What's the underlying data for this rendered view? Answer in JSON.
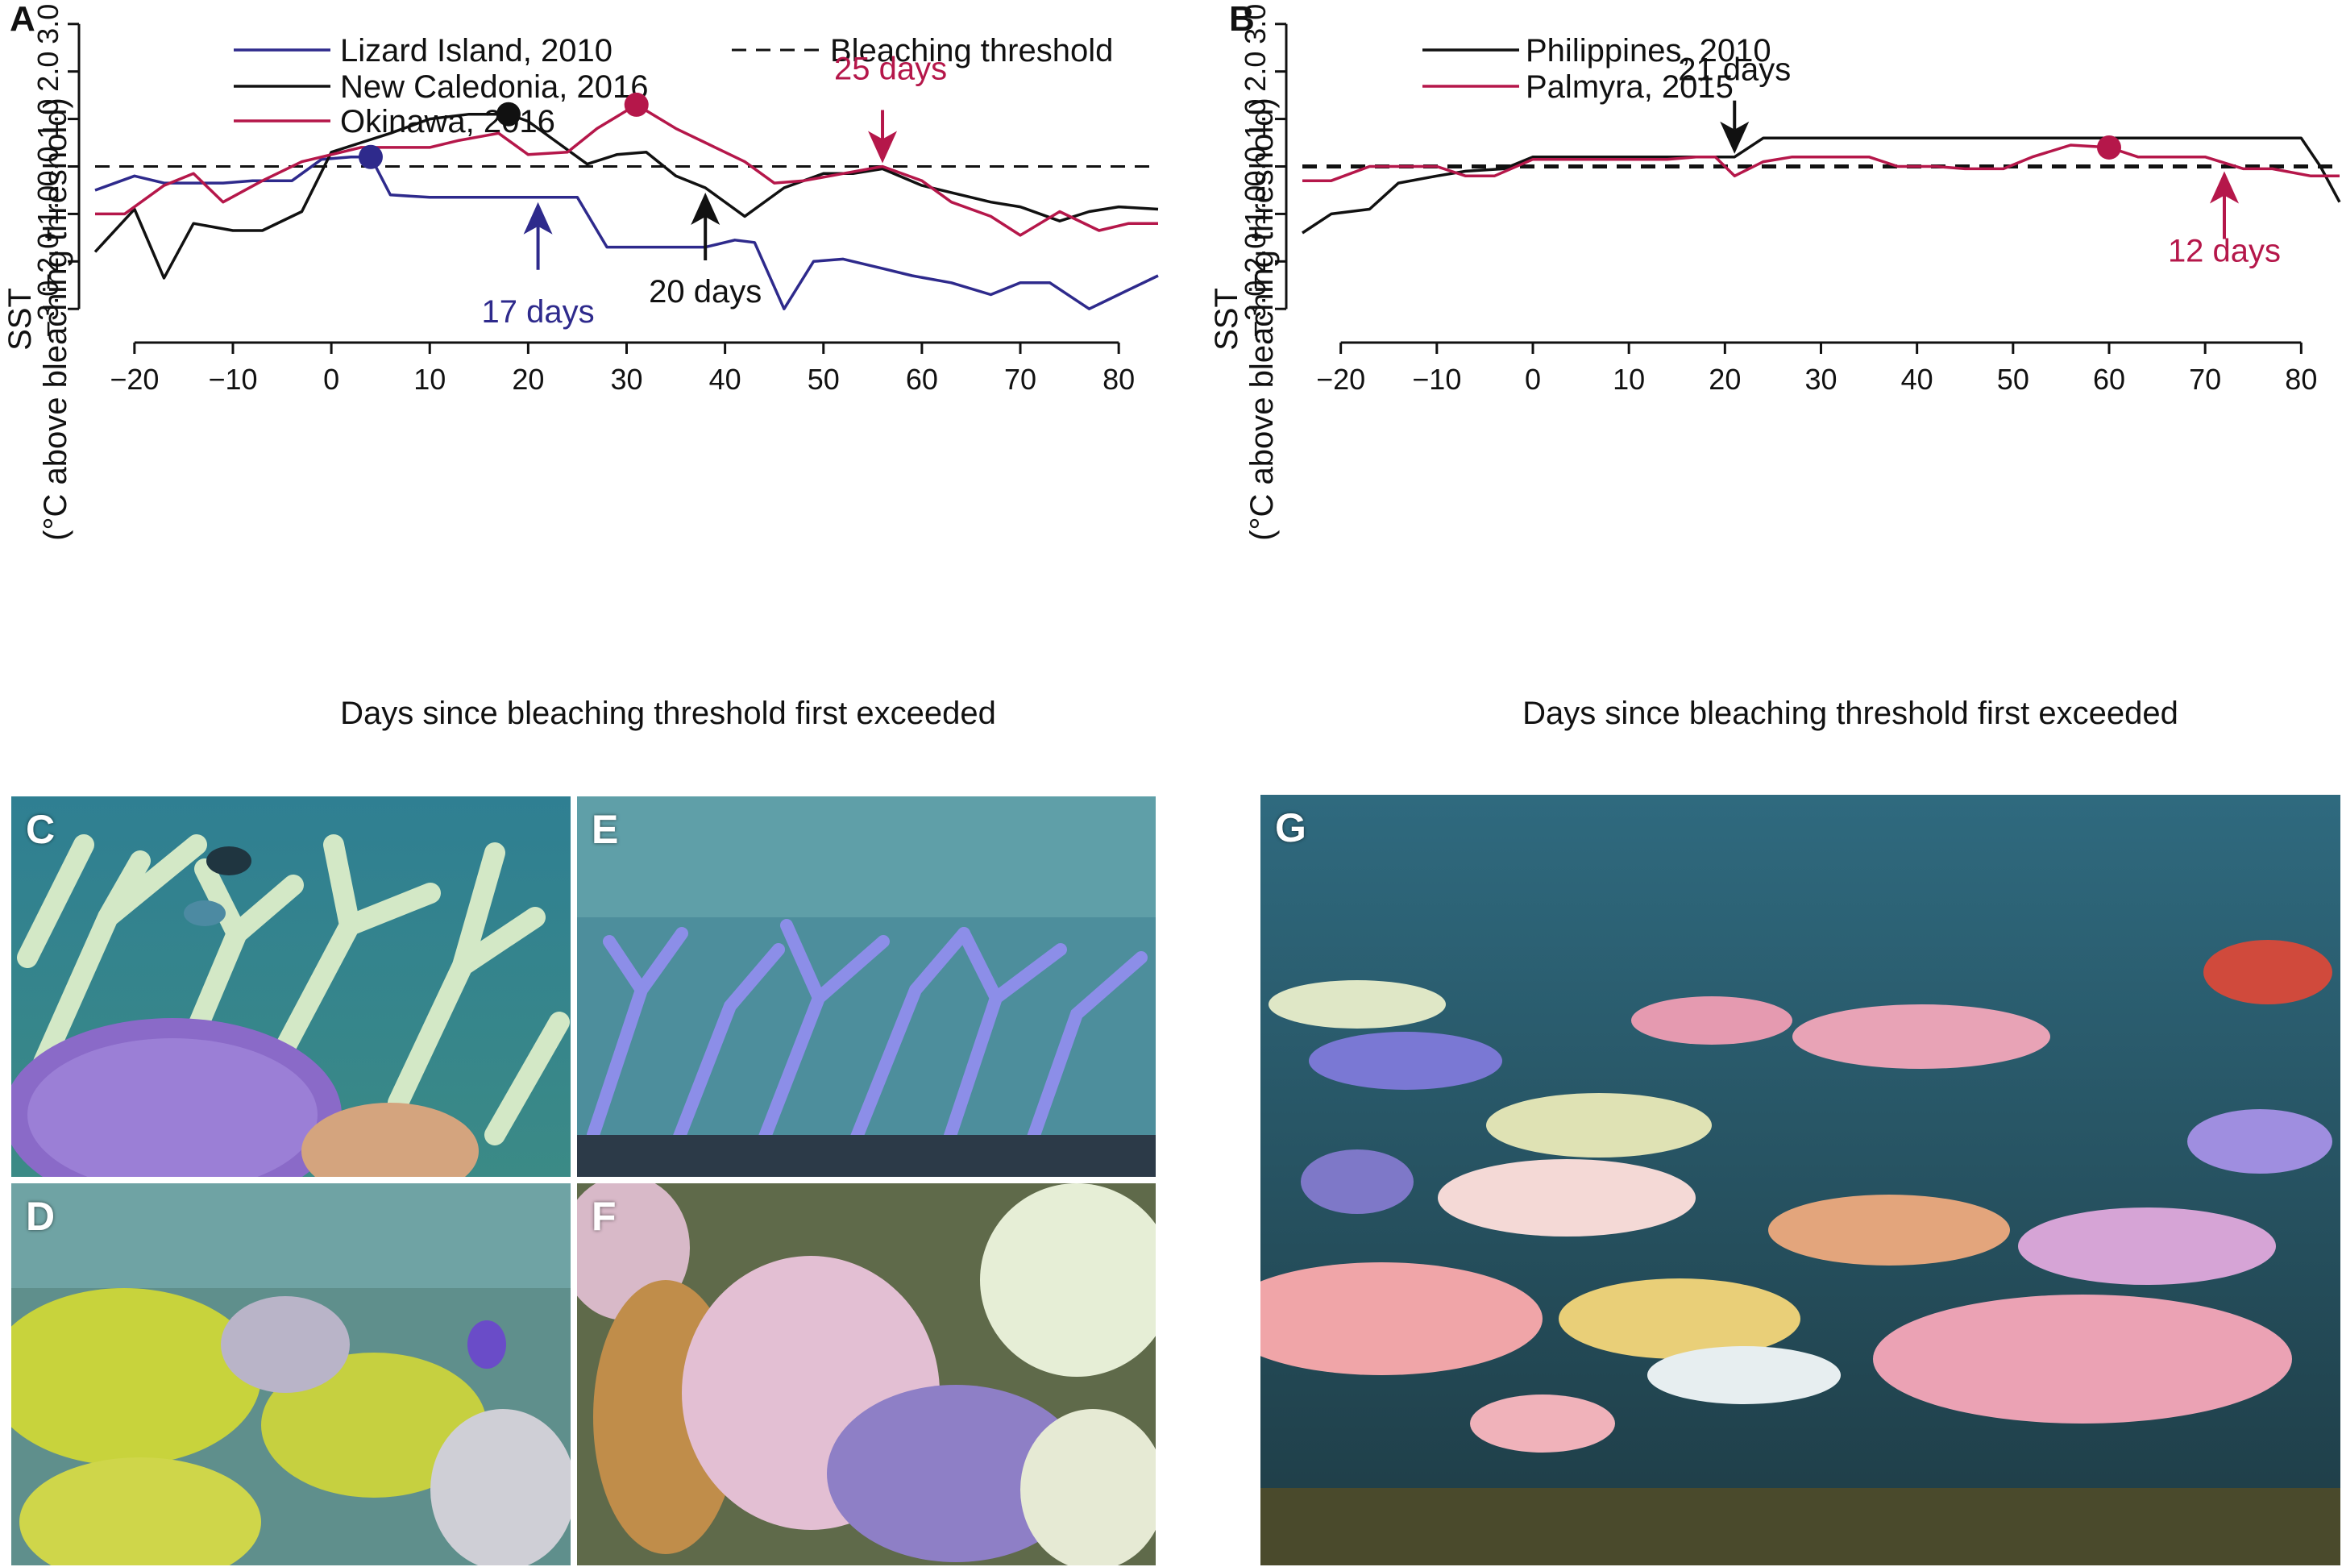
{
  "colors": {
    "lizard": "#2e2a8c",
    "black": "#111111",
    "crimson": "#b5174a",
    "threshold": "#111111"
  },
  "panels": {
    "A": "A",
    "B": "B",
    "C": "C",
    "D": "D",
    "E": "E",
    "F": "F",
    "G": "G"
  },
  "chart_data": [
    {
      "panel": "A",
      "type": "line",
      "xlabel": "Days since bleaching threshold first exceeded",
      "ylabel_line1": "SST",
      "ylabel_line2": "(°C above bleaching threshold)",
      "xlim": [
        -24,
        84
      ],
      "ylim": [
        -3.2,
        3.2
      ],
      "x_ticks": [
        -20,
        -10,
        0,
        10,
        20,
        30,
        40,
        50,
        60,
        70,
        80
      ],
      "x_tick_labels": [
        "−20",
        "−10",
        "0",
        "10",
        "20",
        "30",
        "40",
        "50",
        "60",
        "70",
        "80"
      ],
      "y_ticks": [
        -3,
        -2,
        -1,
        0,
        1,
        2,
        3
      ],
      "y_tick_labels": [
        "−3.0",
        "−2.0",
        "−1.0",
        "0.0",
        "1.0",
        "2.0",
        "3.0"
      ],
      "legend_position": "top",
      "threshold": {
        "name": "Bleaching threshold",
        "y": 0
      },
      "series": [
        {
          "name": "Lizard Island, 2010",
          "color": "#2e2a8c",
          "x": [
            -24,
            -20,
            -17,
            -14,
            -11,
            -8,
            -4,
            -1,
            2,
            4,
            6,
            10,
            14,
            18,
            22,
            25,
            28,
            32,
            35,
            38,
            41,
            43,
            46,
            49,
            52,
            56,
            59,
            63,
            67,
            70,
            73,
            77,
            80,
            84
          ],
          "y": [
            -0.5,
            -0.2,
            -0.35,
            -0.35,
            -0.35,
            -0.3,
            -0.3,
            0.15,
            0.2,
            0.2,
            -0.6,
            -0.65,
            -0.65,
            -0.65,
            -0.65,
            -0.65,
            -1.7,
            -1.7,
            -1.7,
            -1.7,
            -1.55,
            -1.6,
            -3.0,
            -2.0,
            -1.95,
            -2.15,
            -2.3,
            -2.45,
            -2.7,
            -2.45,
            -2.45,
            -3.0,
            -2.7,
            -2.3
          ],
          "marker": {
            "x": 4,
            "y": 0.2
          },
          "annotation": {
            "text": "17 days",
            "x": 21,
            "y": -0.65
          }
        },
        {
          "name": "New Caledonia, 2016",
          "color": "#111111",
          "x": [
            -24,
            -20,
            -17,
            -14,
            -10,
            -7,
            -3,
            0,
            3,
            6,
            10,
            14,
            18,
            20,
            23,
            26,
            29,
            32,
            35,
            38,
            42,
            46,
            50,
            53,
            56,
            60,
            63,
            67,
            70,
            74,
            77,
            80,
            84
          ],
          "y": [
            -1.8,
            -0.9,
            -2.35,
            -1.2,
            -1.35,
            -1.35,
            -0.95,
            0.3,
            0.5,
            0.7,
            1.0,
            1.1,
            1.1,
            0.95,
            0.5,
            0.05,
            0.25,
            0.3,
            -0.2,
            -0.45,
            -1.05,
            -0.45,
            -0.15,
            -0.15,
            -0.05,
            -0.4,
            -0.55,
            -0.75,
            -0.85,
            -1.15,
            -0.95,
            -0.85,
            -0.9
          ],
          "marker": {
            "x": 18,
            "y": 1.1
          },
          "annotation": {
            "text": "20 days",
            "x": 38,
            "y": -0.45
          }
        },
        {
          "name": "Okinawa, 2016",
          "color": "#b5174a",
          "x": [
            -24,
            -21,
            -17,
            -14,
            -11,
            -7,
            -3,
            0,
            3,
            6,
            10,
            13,
            17,
            20,
            24,
            27,
            31,
            35,
            38,
            42,
            45,
            48,
            52,
            56,
            60,
            63,
            67,
            70,
            74,
            78,
            81,
            84
          ],
          "y": [
            -1.0,
            -1.0,
            -0.4,
            -0.15,
            -0.75,
            -0.3,
            0.1,
            0.25,
            0.4,
            0.4,
            0.4,
            0.55,
            0.7,
            0.25,
            0.3,
            0.8,
            1.3,
            0.8,
            0.5,
            0.1,
            -0.35,
            -0.3,
            -0.15,
            0.0,
            -0.3,
            -0.75,
            -1.05,
            -1.45,
            -0.95,
            -1.35,
            -1.2,
            -1.2
          ],
          "marker": {
            "x": 31,
            "y": 1.3
          },
          "annotation": {
            "text": "25 days",
            "x": 56,
            "y": 0.0
          }
        }
      ]
    },
    {
      "panel": "B",
      "type": "line",
      "xlabel": "Days since bleaching threshold first exceeded",
      "ylabel_line1": "SST",
      "ylabel_line2": "(°C above bleaching threshold)",
      "xlim": [
        -24,
        84
      ],
      "ylim": [
        -3.2,
        3.2
      ],
      "x_ticks": [
        -20,
        -10,
        0,
        10,
        20,
        30,
        40,
        50,
        60,
        70,
        80
      ],
      "x_tick_labels": [
        "−20",
        "−10",
        "0",
        "10",
        "20",
        "30",
        "40",
        "50",
        "60",
        "70",
        "80"
      ],
      "y_ticks": [
        -3,
        -2,
        -1,
        0,
        1,
        2,
        3
      ],
      "y_tick_labels": [
        "−3.0",
        "−2.0",
        "−1.0",
        "0.0",
        "1.0",
        "2.0",
        "3.0"
      ],
      "legend_position": "top-left",
      "threshold": {
        "y": 0
      },
      "series": [
        {
          "name": "Philippines, 2010",
          "color": "#111111",
          "x": [
            -24,
            -21,
            -17,
            -14,
            -10,
            -7,
            -3,
            0,
            3,
            7,
            10,
            14,
            17,
            21,
            24,
            28,
            35,
            42,
            49,
            56,
            63,
            70,
            77,
            80,
            82,
            84
          ],
          "y": [
            -1.4,
            -1.0,
            -0.9,
            -0.35,
            -0.2,
            -0.1,
            -0.05,
            0.2,
            0.2,
            0.2,
            0.2,
            0.2,
            0.2,
            0.2,
            0.6,
            0.6,
            0.6,
            0.6,
            0.6,
            0.6,
            0.6,
            0.6,
            0.6,
            0.6,
            0.0,
            -0.75
          ],
          "annotation": {
            "text": "21 days",
            "x": 21,
            "y": 0.2
          }
        },
        {
          "name": "Palmyra, 2015",
          "color": "#b5174a",
          "x": [
            -24,
            -21,
            -17,
            -14,
            -10,
            -7,
            -4,
            0,
            3,
            7,
            10,
            14,
            17,
            19,
            21,
            24,
            27,
            31,
            35,
            38,
            42,
            45,
            49,
            52,
            56,
            60,
            63,
            66,
            70,
            74,
            77,
            81,
            84
          ],
          "y": [
            -0.3,
            -0.3,
            0.0,
            0.0,
            0.0,
            -0.2,
            -0.2,
            0.15,
            0.15,
            0.15,
            0.15,
            0.15,
            0.2,
            0.2,
            -0.2,
            0.1,
            0.2,
            0.2,
            0.2,
            0.0,
            0.0,
            -0.05,
            -0.05,
            0.2,
            0.45,
            0.4,
            0.2,
            0.2,
            0.2,
            -0.05,
            -0.05,
            -0.2,
            -0.2
          ],
          "marker": {
            "x": 60,
            "y": 0.4
          },
          "annotation": {
            "text": "12 days",
            "x": 72,
            "y": 0.0
          }
        }
      ]
    }
  ]
}
